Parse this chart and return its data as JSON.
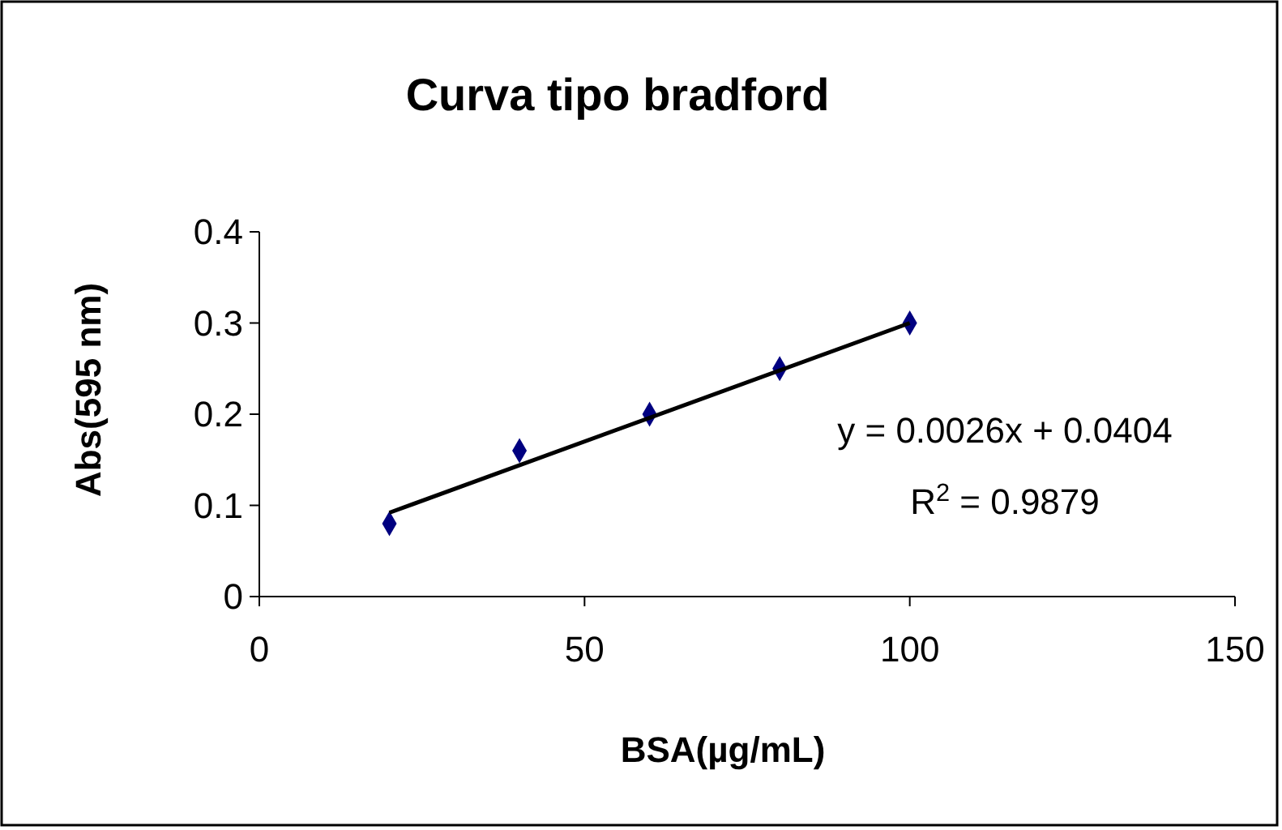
{
  "chart_data": {
    "type": "scatter",
    "title": "Curva tipo bradford",
    "xlabel": "BSA(µg/mL)",
    "ylabel": "Abs(595 nm)",
    "x": [
      20,
      40,
      60,
      80,
      100
    ],
    "series": [
      {
        "type": "scatter",
        "color": "#000080",
        "marker": "diamond",
        "values": [
          0.08,
          0.16,
          0.2,
          0.25,
          0.3
        ]
      },
      {
        "type": "line",
        "color": "#000000",
        "marker": "none",
        "x": [
          20,
          100
        ],
        "values": [
          0.092,
          0.3
        ]
      }
    ],
    "xlim": [
      0,
      150
    ],
    "xticks": [
      0,
      50,
      100,
      150
    ],
    "ylim": [
      0,
      0.4
    ],
    "yticks": [
      0,
      0.1,
      0.2,
      0.3,
      0.4
    ],
    "annotations": [
      "y = 0.0026x + 0.0404",
      "R$^{2}$ = 0.9879"
    ],
    "grid": false
  }
}
